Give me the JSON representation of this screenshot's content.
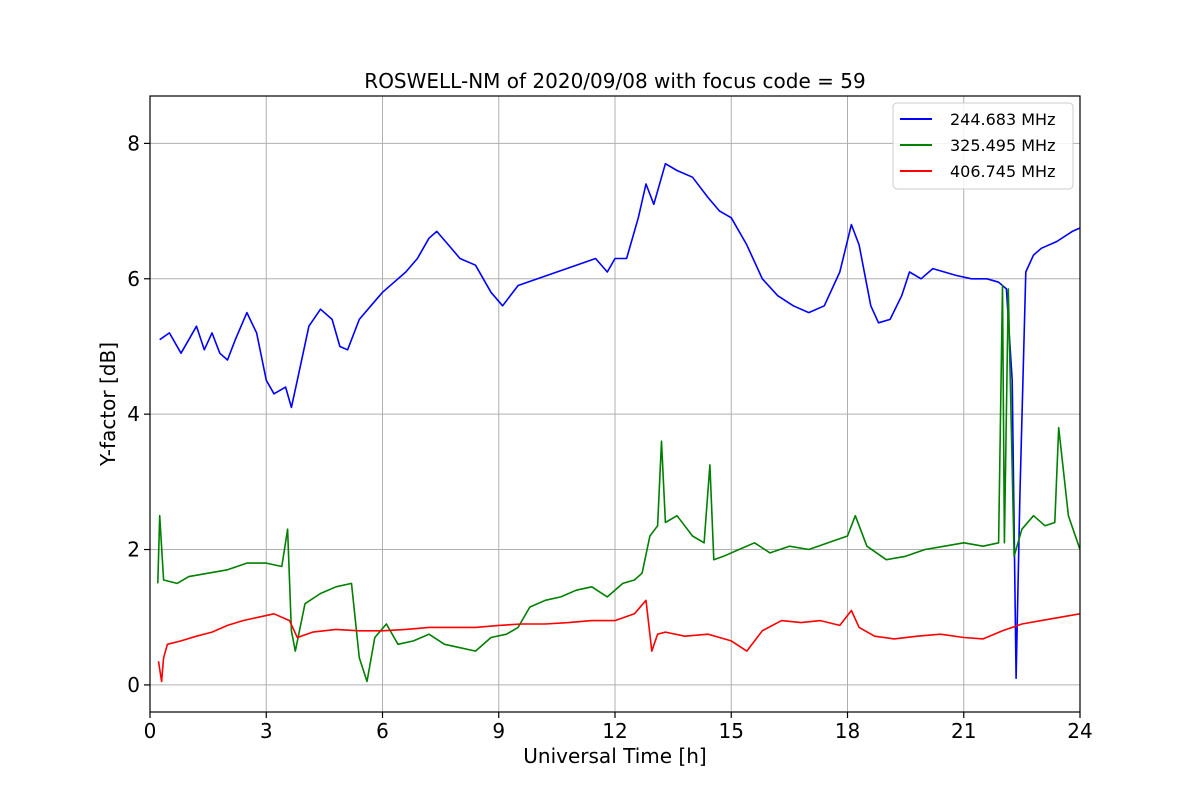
{
  "chart_data": {
    "type": "line",
    "title": "ROSWELL-NM of 2020/09/08 with focus code = 59",
    "xlabel": "Universal Time [h]",
    "ylabel": "Y-factor [dB]",
    "xlim": [
      0,
      24
    ],
    "ylim": [
      -0.4,
      8.7
    ],
    "xticks": [
      0,
      3,
      6,
      9,
      12,
      15,
      18,
      21,
      24
    ],
    "yticks": [
      0,
      2,
      4,
      6,
      8
    ],
    "grid": true,
    "legend_position": "top-right",
    "series": [
      {
        "name": "244.683 MHz",
        "color": "#0000ff",
        "x": [
          0.25,
          0.5,
          0.8,
          1.0,
          1.2,
          1.4,
          1.6,
          1.8,
          2.0,
          2.2,
          2.5,
          2.75,
          3.0,
          3.2,
          3.5,
          3.65,
          3.8,
          4.1,
          4.4,
          4.7,
          4.9,
          5.1,
          5.4,
          5.7,
          6.0,
          6.3,
          6.6,
          6.9,
          7.2,
          7.4,
          7.7,
          8.0,
          8.4,
          8.8,
          9.1,
          9.5,
          10.0,
          10.5,
          11.0,
          11.5,
          11.8,
          12.0,
          12.3,
          12.6,
          12.8,
          13.0,
          13.3,
          13.6,
          14.0,
          14.4,
          14.7,
          15.0,
          15.4,
          15.8,
          16.2,
          16.6,
          17.0,
          17.4,
          17.8,
          18.1,
          18.3,
          18.6,
          18.8,
          19.1,
          19.4,
          19.6,
          19.9,
          20.2,
          20.5,
          20.8,
          21.2,
          21.6,
          21.9,
          22.1,
          22.25,
          22.35,
          22.45,
          22.6,
          22.8,
          23.0,
          23.4,
          23.8,
          24.0
        ],
        "y": [
          5.1,
          5.2,
          4.9,
          5.1,
          5.3,
          4.95,
          5.2,
          4.9,
          4.8,
          5.1,
          5.5,
          5.2,
          4.5,
          4.3,
          4.4,
          4.1,
          4.5,
          5.3,
          5.55,
          5.4,
          5.0,
          4.95,
          5.4,
          5.6,
          5.8,
          5.95,
          6.1,
          6.3,
          6.6,
          6.7,
          6.5,
          6.3,
          6.2,
          5.8,
          5.6,
          5.9,
          6.0,
          6.1,
          6.2,
          6.3,
          6.1,
          6.3,
          6.3,
          6.9,
          7.4,
          7.1,
          7.7,
          7.6,
          7.5,
          7.2,
          7.0,
          6.9,
          6.5,
          6.0,
          5.75,
          5.6,
          5.5,
          5.6,
          6.1,
          6.8,
          6.5,
          5.6,
          5.35,
          5.4,
          5.75,
          6.1,
          6.0,
          6.15,
          6.1,
          6.05,
          6.0,
          6.0,
          5.95,
          5.85,
          4.5,
          0.1,
          2.8,
          6.1,
          6.35,
          6.45,
          6.55,
          6.7,
          6.75
        ]
      },
      {
        "name": "325.495 MHz",
        "color": "#008000",
        "x": [
          0.2,
          0.25,
          0.35,
          0.7,
          1.0,
          1.5,
          2.0,
          2.5,
          3.0,
          3.4,
          3.55,
          3.65,
          3.75,
          4.0,
          4.4,
          4.8,
          5.2,
          5.4,
          5.6,
          5.8,
          6.1,
          6.4,
          6.8,
          7.2,
          7.6,
          8.0,
          8.4,
          8.8,
          9.2,
          9.5,
          9.8,
          10.2,
          10.6,
          11.0,
          11.4,
          11.8,
          12.2,
          12.5,
          12.7,
          12.9,
          13.1,
          13.2,
          13.3,
          13.6,
          14.0,
          14.3,
          14.45,
          14.55,
          14.8,
          15.2,
          15.6,
          16.0,
          16.5,
          17.0,
          17.5,
          18.0,
          18.2,
          18.5,
          19.0,
          19.5,
          20.0,
          20.5,
          21.0,
          21.5,
          21.9,
          22.0,
          22.05,
          22.15,
          22.3,
          22.5,
          22.8,
          23.1,
          23.35,
          23.45,
          23.7,
          24.0
        ],
        "y": [
          1.5,
          2.5,
          1.55,
          1.5,
          1.6,
          1.65,
          1.7,
          1.8,
          1.8,
          1.75,
          2.3,
          0.8,
          0.5,
          1.2,
          1.35,
          1.45,
          1.5,
          0.4,
          0.05,
          0.7,
          0.9,
          0.6,
          0.65,
          0.75,
          0.6,
          0.55,
          0.5,
          0.7,
          0.75,
          0.85,
          1.15,
          1.25,
          1.3,
          1.4,
          1.45,
          1.3,
          1.5,
          1.55,
          1.65,
          2.2,
          2.35,
          3.6,
          2.4,
          2.5,
          2.2,
          2.1,
          3.25,
          1.85,
          1.9,
          2.0,
          2.1,
          1.95,
          2.05,
          2.0,
          2.1,
          2.2,
          2.5,
          2.05,
          1.85,
          1.9,
          2.0,
          2.05,
          2.1,
          2.05,
          2.1,
          5.9,
          2.1,
          5.85,
          1.9,
          2.3,
          2.5,
          2.35,
          2.4,
          3.8,
          2.5,
          2.0
        ]
      },
      {
        "name": "406.745 MHz",
        "color": "#ff0000",
        "x": [
          0.22,
          0.3,
          0.35,
          0.45,
          0.8,
          1.2,
          1.6,
          2.0,
          2.4,
          2.8,
          3.2,
          3.6,
          3.8,
          4.2,
          4.8,
          5.4,
          6.0,
          6.6,
          7.2,
          7.8,
          8.4,
          9.0,
          9.6,
          10.2,
          10.8,
          11.4,
          12.0,
          12.5,
          12.8,
          12.95,
          13.1,
          13.3,
          13.8,
          14.4,
          15.0,
          15.4,
          15.8,
          16.3,
          16.8,
          17.3,
          17.8,
          18.1,
          18.3,
          18.7,
          19.2,
          19.8,
          20.4,
          21.0,
          21.5,
          22.0,
          22.5,
          23.0,
          23.5,
          24.0
        ],
        "y": [
          0.35,
          0.05,
          0.4,
          0.6,
          0.65,
          0.72,
          0.78,
          0.88,
          0.95,
          1.0,
          1.05,
          0.95,
          0.7,
          0.78,
          0.82,
          0.8,
          0.8,
          0.82,
          0.85,
          0.85,
          0.85,
          0.88,
          0.9,
          0.9,
          0.92,
          0.95,
          0.95,
          1.05,
          1.25,
          0.5,
          0.75,
          0.78,
          0.72,
          0.75,
          0.65,
          0.5,
          0.8,
          0.95,
          0.92,
          0.95,
          0.88,
          1.1,
          0.85,
          0.72,
          0.68,
          0.72,
          0.75,
          0.7,
          0.68,
          0.8,
          0.9,
          0.95,
          1.0,
          1.05
        ]
      }
    ]
  }
}
